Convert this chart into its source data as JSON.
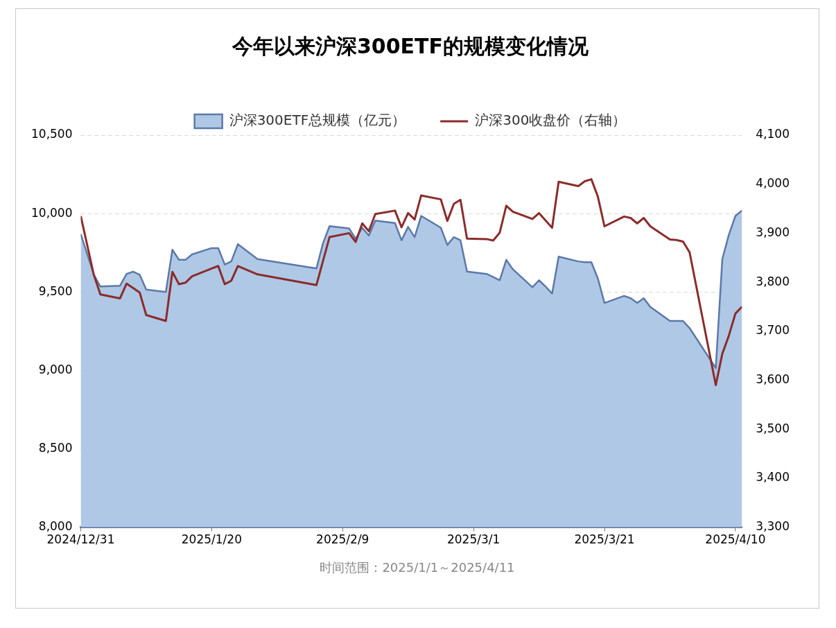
{
  "chart_data": {
    "type": "area",
    "title": "今年以来沪深300ETF的规模变化情况",
    "x": [
      "2024-12-31",
      "2025-01-02",
      "2025-01-03",
      "2025-01-06",
      "2025-01-07",
      "2025-01-08",
      "2025-01-09",
      "2025-01-10",
      "2025-01-13",
      "2025-01-14",
      "2025-01-15",
      "2025-01-16",
      "2025-01-17",
      "2025-01-20",
      "2025-01-21",
      "2025-01-22",
      "2025-01-23",
      "2025-01-24",
      "2025-01-27",
      "2025-02-05",
      "2025-02-06",
      "2025-02-07",
      "2025-02-10",
      "2025-02-11",
      "2025-02-12",
      "2025-02-13",
      "2025-02-14",
      "2025-02-17",
      "2025-02-18",
      "2025-02-19",
      "2025-02-20",
      "2025-02-21",
      "2025-02-24",
      "2025-02-25",
      "2025-02-26",
      "2025-02-27",
      "2025-02-28",
      "2025-03-03",
      "2025-03-04",
      "2025-03-05",
      "2025-03-06",
      "2025-03-07",
      "2025-03-10",
      "2025-03-11",
      "2025-03-12",
      "2025-03-13",
      "2025-03-14",
      "2025-03-17",
      "2025-03-18",
      "2025-03-19",
      "2025-03-20",
      "2025-03-21",
      "2025-03-24",
      "2025-03-25",
      "2025-03-26",
      "2025-03-27",
      "2025-03-28",
      "2025-03-31",
      "2025-04-01",
      "2025-04-02",
      "2025-04-03",
      "2025-04-07",
      "2025-04-08",
      "2025-04-09",
      "2025-04-10",
      "2025-04-11"
    ],
    "series": [
      {
        "name": "沪深300ETF总规模（亿元）",
        "color": "#afc8e6",
        "values": [
          9870,
          9610,
          9535,
          9540,
          9615,
          9630,
          9610,
          9515,
          9500,
          9770,
          9705,
          9705,
          9740,
          9780,
          9780,
          9675,
          9695,
          9805,
          9710,
          9650,
          9810,
          9920,
          9905,
          9840,
          9910,
          9860,
          9955,
          9940,
          9830,
          9915,
          9850,
          9985,
          9910,
          9800,
          9850,
          9830,
          9630,
          9615,
          9595,
          9575,
          9705,
          9645,
          9530,
          9575,
          9535,
          9490,
          9725,
          9695,
          9690,
          9690,
          9585,
          9430,
          9475,
          9460,
          9430,
          9460,
          9405,
          9315,
          9315,
          9315,
          9270,
          9015,
          9710,
          9865,
          9985,
          10020
        ]
      },
      {
        "name": "沪深300收盘价（右轴）",
        "type": "line",
        "axis": "y2",
        "color": "#8b2b2b",
        "values": [
          3935,
          3815,
          3775,
          3767,
          3797,
          3788,
          3779,
          3733,
          3721,
          3821,
          3796,
          3799,
          3812,
          3828,
          3833,
          3796,
          3803,
          3833,
          3816,
          3794,
          3843,
          3892,
          3900,
          3882,
          3920,
          3904,
          3939,
          3946,
          3912,
          3941,
          3928,
          3977,
          3969,
          3925,
          3960,
          3968,
          3889,
          3888,
          3885,
          3901,
          3956,
          3944,
          3929,
          3941,
          3926,
          3911,
          4005,
          3996,
          4006,
          4010,
          3974,
          3914,
          3934,
          3931,
          3920,
          3931,
          3914,
          3887,
          3886,
          3883,
          3861,
          3590,
          3654,
          3691,
          3736,
          3750
        ]
      }
    ],
    "xlim": [
      "2024-12-31",
      "2025-04-11"
    ],
    "xticks": [
      {
        "value": "2024-12-31",
        "label": "2024/12/31"
      },
      {
        "value": "2025-01-20",
        "label": "2025/1/20"
      },
      {
        "value": "2025-02-09",
        "label": "2025/2/9"
      },
      {
        "value": "2025-03-01",
        "label": "2025/3/1"
      },
      {
        "value": "2025-03-21",
        "label": "2025/3/21"
      },
      {
        "value": "2025-04-10",
        "label": "2025/4/10"
      }
    ],
    "ylim": [
      8000,
      10500
    ],
    "yticks": [
      {
        "value": 8000,
        "label": "8,000"
      },
      {
        "value": 8500,
        "label": "8,500"
      },
      {
        "value": 9000,
        "label": "9,000"
      },
      {
        "value": 9500,
        "label": "9,500"
      },
      {
        "value": 10000,
        "label": "10,000"
      },
      {
        "value": 10500,
        "label": "10,500"
      }
    ],
    "y2lim": [
      3300,
      4100
    ],
    "y2ticks": [
      {
        "value": 3300,
        "label": "3,300"
      },
      {
        "value": 3400,
        "label": "3,400"
      },
      {
        "value": 3500,
        "label": "3,500"
      },
      {
        "value": 3600,
        "label": "3,600"
      },
      {
        "value": 3700,
        "label": "3,700"
      },
      {
        "value": 3800,
        "label": "3,800"
      },
      {
        "value": 3900,
        "label": "3,900"
      },
      {
        "value": 4000,
        "label": "4,000"
      },
      {
        "value": 4100,
        "label": "4,100"
      }
    ],
    "grid": "y",
    "legend": "top",
    "annotations": [
      "时间范围：2025/1/1～2025/4/11"
    ]
  }
}
